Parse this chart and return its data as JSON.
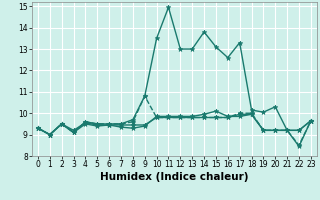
{
  "xlabel": "Humidex (Indice chaleur)",
  "bg_color": "#cff0ea",
  "grid_color": "#ffffff",
  "line_color": "#1a7a6e",
  "xlim": [
    -0.5,
    23.5
  ],
  "ylim": [
    8,
    15.2
  ],
  "xticks": [
    0,
    1,
    2,
    3,
    4,
    5,
    6,
    7,
    8,
    9,
    10,
    11,
    12,
    13,
    14,
    15,
    16,
    17,
    18,
    19,
    20,
    21,
    22,
    23
  ],
  "yticks": [
    8,
    9,
    10,
    11,
    12,
    13,
    14,
    15
  ],
  "lines": [
    {
      "y": [
        9.3,
        9.0,
        9.5,
        9.1,
        9.6,
        9.5,
        9.5,
        9.5,
        9.7,
        10.8,
        13.5,
        14.95,
        13.0,
        13.0,
        13.8,
        13.1,
        12.6,
        13.3,
        10.15,
        10.05,
        10.3,
        9.2,
        8.45,
        9.65
      ],
      "style": "-",
      "lw": 1.0
    },
    {
      "y": [
        9.3,
        9.0,
        9.5,
        9.2,
        9.55,
        9.45,
        9.45,
        9.35,
        9.3,
        9.4,
        9.85,
        9.85,
        9.85,
        9.85,
        9.95,
        10.1,
        9.85,
        9.85,
        9.95,
        9.2,
        9.2,
        9.2,
        9.2,
        9.65
      ],
      "style": "-",
      "lw": 1.0
    },
    {
      "y": [
        9.3,
        9.0,
        9.5,
        9.1,
        9.5,
        9.4,
        9.45,
        9.45,
        9.45,
        9.45,
        9.8,
        9.8,
        9.8,
        9.8,
        9.8,
        9.8,
        9.8,
        9.95,
        9.95,
        9.2,
        9.2,
        9.2,
        9.2,
        9.65
      ],
      "style": "-",
      "lw": 1.0
    },
    {
      "y": [
        9.3,
        9.0,
        9.5,
        9.1,
        9.6,
        9.5,
        9.5,
        9.5,
        9.6,
        10.8,
        9.8,
        9.8,
        9.8,
        9.8,
        9.8,
        9.8,
        9.8,
        10.0,
        10.0,
        9.2,
        9.2,
        9.2,
        8.5,
        9.65
      ],
      "style": "--",
      "lw": 1.0
    }
  ],
  "marker": "*",
  "markersize": 3.5,
  "tick_fontsize": 5.5,
  "label_fontsize": 7.5
}
